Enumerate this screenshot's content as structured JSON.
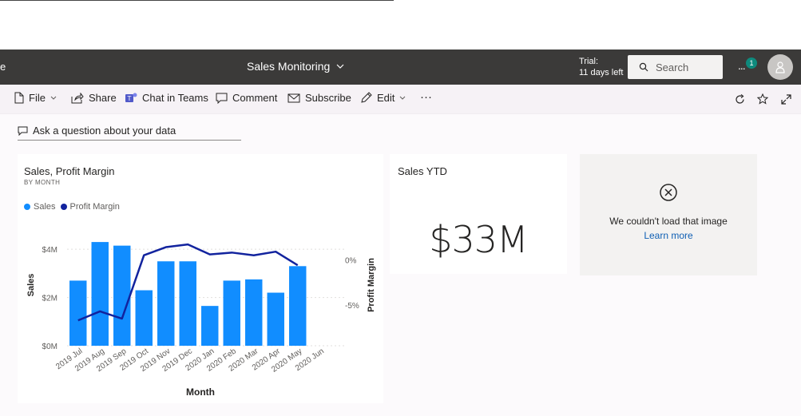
{
  "appbar": {
    "title": "Sales Monitoring",
    "trial_line1": "Trial:",
    "trial_line2": "11 days left",
    "search_placeholder": "Search",
    "more_label": "...",
    "notification_count": "1"
  },
  "toolbar": {
    "file": "File",
    "share": "Share",
    "chat": "Chat in Teams",
    "comment": "Comment",
    "subscribe": "Subscribe",
    "edit": "Edit",
    "overflow": "···"
  },
  "qa": {
    "label": "Ask a question about your data"
  },
  "tiles": {
    "sales_chart": {
      "title": "Sales, Profit Margin",
      "subtitle": "BY MONTH",
      "legend": [
        "Sales",
        "Profit Margin"
      ]
    },
    "sales_ytd": {
      "title": "Sales YTD",
      "value": "$33M"
    },
    "image_error": {
      "message": "We couldn't load that image",
      "link": "Learn more"
    }
  },
  "colors": {
    "sales": "#118DFF",
    "profit_margin": "#12239E",
    "appbar": "#3b3a39"
  },
  "chart_data": {
    "type": "bar",
    "title": "Sales, Profit Margin",
    "subtitle": "BY MONTH",
    "categories": [
      "2019 Jul",
      "2019 Aug",
      "2019 Sep",
      "2019 Oct",
      "2019 Nov",
      "2019 Dec",
      "2020 Jan",
      "2020 Feb",
      "2020 Mar",
      "2020 Apr",
      "2020 May",
      "2020 Jun"
    ],
    "series": [
      {
        "name": "Sales",
        "type": "bar",
        "axis": "left",
        "values": [
          2.7,
          4.3,
          4.15,
          2.3,
          3.5,
          3.5,
          1.65,
          2.7,
          2.75,
          2.2,
          3.3,
          null
        ]
      },
      {
        "name": "Profit Margin",
        "type": "line",
        "axis": "right",
        "values": [
          -6.7,
          -5.7,
          -6.5,
          0.5,
          1.4,
          1.7,
          0.6,
          0.8,
          0.5,
          0.9,
          -0.6,
          null
        ]
      }
    ],
    "xlabel": "Month",
    "ylabel": "Sales",
    "y2label": "Profit Margin",
    "yticks": [
      "$0M",
      "$2M",
      "$4M"
    ],
    "ylim": [
      0,
      4.8
    ],
    "y2ticks": [
      "-5%",
      "0%"
    ],
    "y2lim": [
      -9.5,
      3.3
    ],
    "grid": true,
    "legend_position": "top-left"
  }
}
